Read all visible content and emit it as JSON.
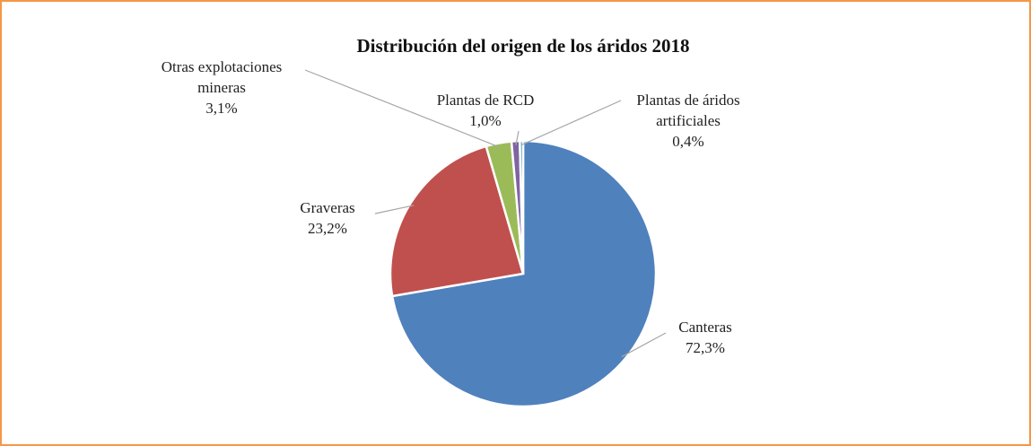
{
  "chart_data": {
    "type": "pie",
    "title": "Distribución del origen de los áridos 2018",
    "categories": [
      "Canteras",
      "Graveras",
      "Otras explotaciones mineras",
      "Plantas de RCD",
      "Plantas de áridos artificiales"
    ],
    "values": [
      72.3,
      23.2,
      3.1,
      1.0,
      0.4
    ],
    "value_labels": [
      "72,3%",
      "23,2%",
      "3,1%",
      "1,0%",
      "0,4%"
    ],
    "colors": [
      "#4f81bd",
      "#c0504d",
      "#9bbb59",
      "#8064a2",
      "#4bacc6"
    ]
  }
}
